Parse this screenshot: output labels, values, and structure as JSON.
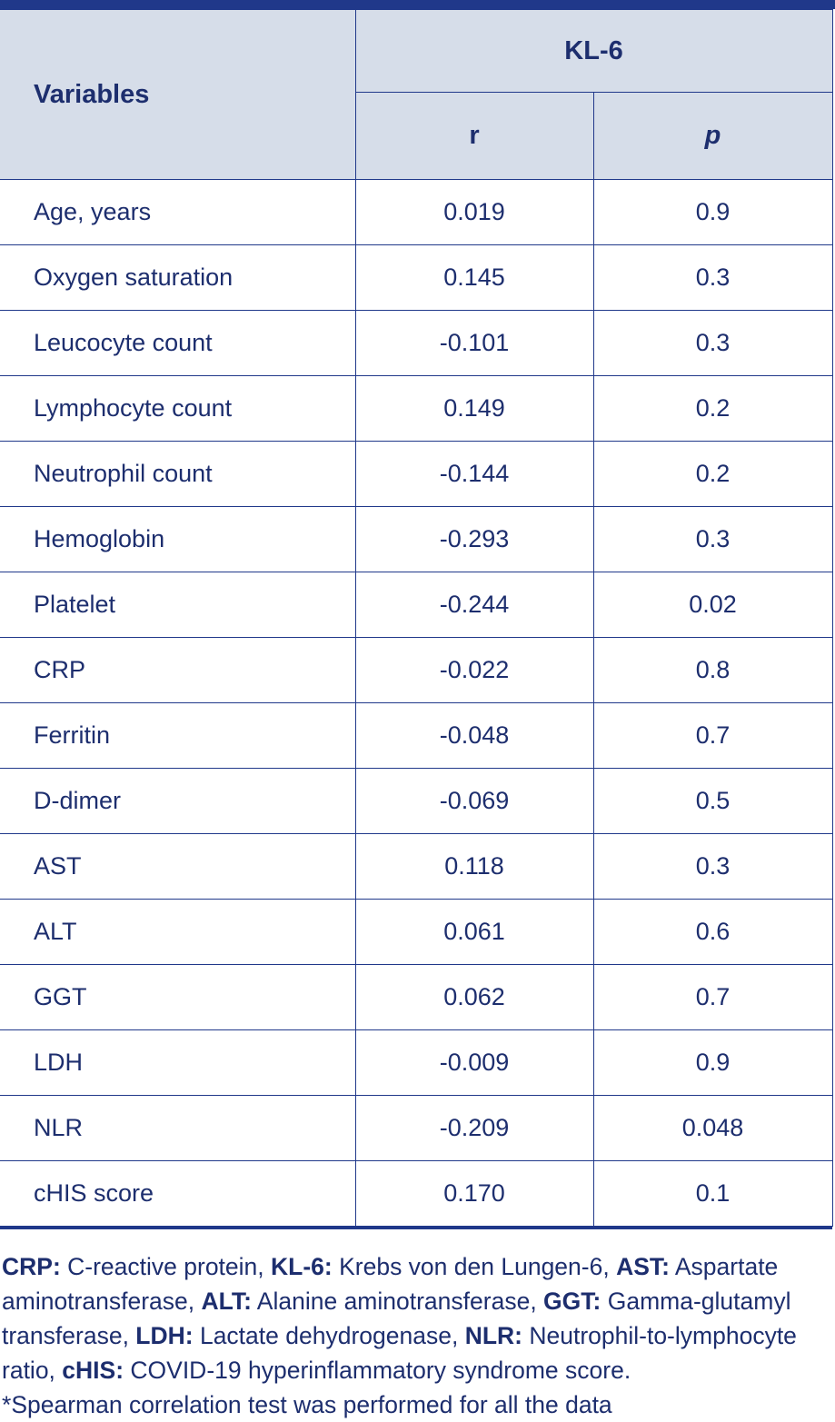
{
  "header": {
    "variables": "Variables",
    "group": "KL-6",
    "col_r": "r",
    "col_p": "p"
  },
  "rows": [
    {
      "name": "Age, years",
      "r": "0.019",
      "p": "0.9"
    },
    {
      "name": "Oxygen saturation",
      "r": "0.145",
      "p": "0.3"
    },
    {
      "name": "Leucocyte count",
      "r": "-0.101",
      "p": "0.3"
    },
    {
      "name": "Lymphocyte count",
      "r": "0.149",
      "p": "0.2"
    },
    {
      "name": "Neutrophil count",
      "r": "-0.144",
      "p": "0.2"
    },
    {
      "name": "Hemoglobin",
      "r": "-0.293",
      "p": "0.3"
    },
    {
      "name": "Platelet",
      "r": "-0.244",
      "p": "0.02"
    },
    {
      "name": "CRP",
      "r": "-0.022",
      "p": "0.8"
    },
    {
      "name": "Ferritin",
      "r": "-0.048",
      "p": "0.7"
    },
    {
      "name": "D-dimer",
      "r": "-0.069",
      "p": "0.5"
    },
    {
      "name": "AST",
      "r": "0.118",
      "p": "0.3"
    },
    {
      "name": "ALT",
      "r": "0.061",
      "p": "0.6"
    },
    {
      "name": "GGT",
      "r": "0.062",
      "p": "0.7"
    },
    {
      "name": "LDH",
      "r": "-0.009",
      "p": "0.9"
    },
    {
      "name": "NLR",
      "r": "-0.209",
      "p": "0.048"
    },
    {
      "name": "cHIS score",
      "r": "0.170",
      "p": "0.1"
    }
  ],
  "footnote": {
    "abbreviations": [
      {
        "abbr": "CRP:",
        "text": " C-reactive protein, "
      },
      {
        "abbr": "KL-6:",
        "text": " Krebs von den Lungen-6, "
      },
      {
        "abbr": "AST:",
        "text": " Aspartate aminotransferase, "
      },
      {
        "abbr": "ALT:",
        "text": " Alanine aminotransferase, "
      },
      {
        "abbr": "GGT:",
        "text": " Gamma-glutamyl transferase, "
      },
      {
        "abbr": "LDH:",
        "text": " Lactate dehydrogenase, "
      },
      {
        "abbr": "NLR:",
        "text": " Neutrophil-to-lymphocyte ratio, "
      },
      {
        "abbr": "cHIS:",
        "text": " COVID-19 hyperinflammatory syndrome score."
      }
    ],
    "note": "*Spearman correlation test was performed for all the data"
  },
  "colors": {
    "border": "#20388a",
    "header_bg": "#d6dde9",
    "text": "#1d2e6e"
  }
}
